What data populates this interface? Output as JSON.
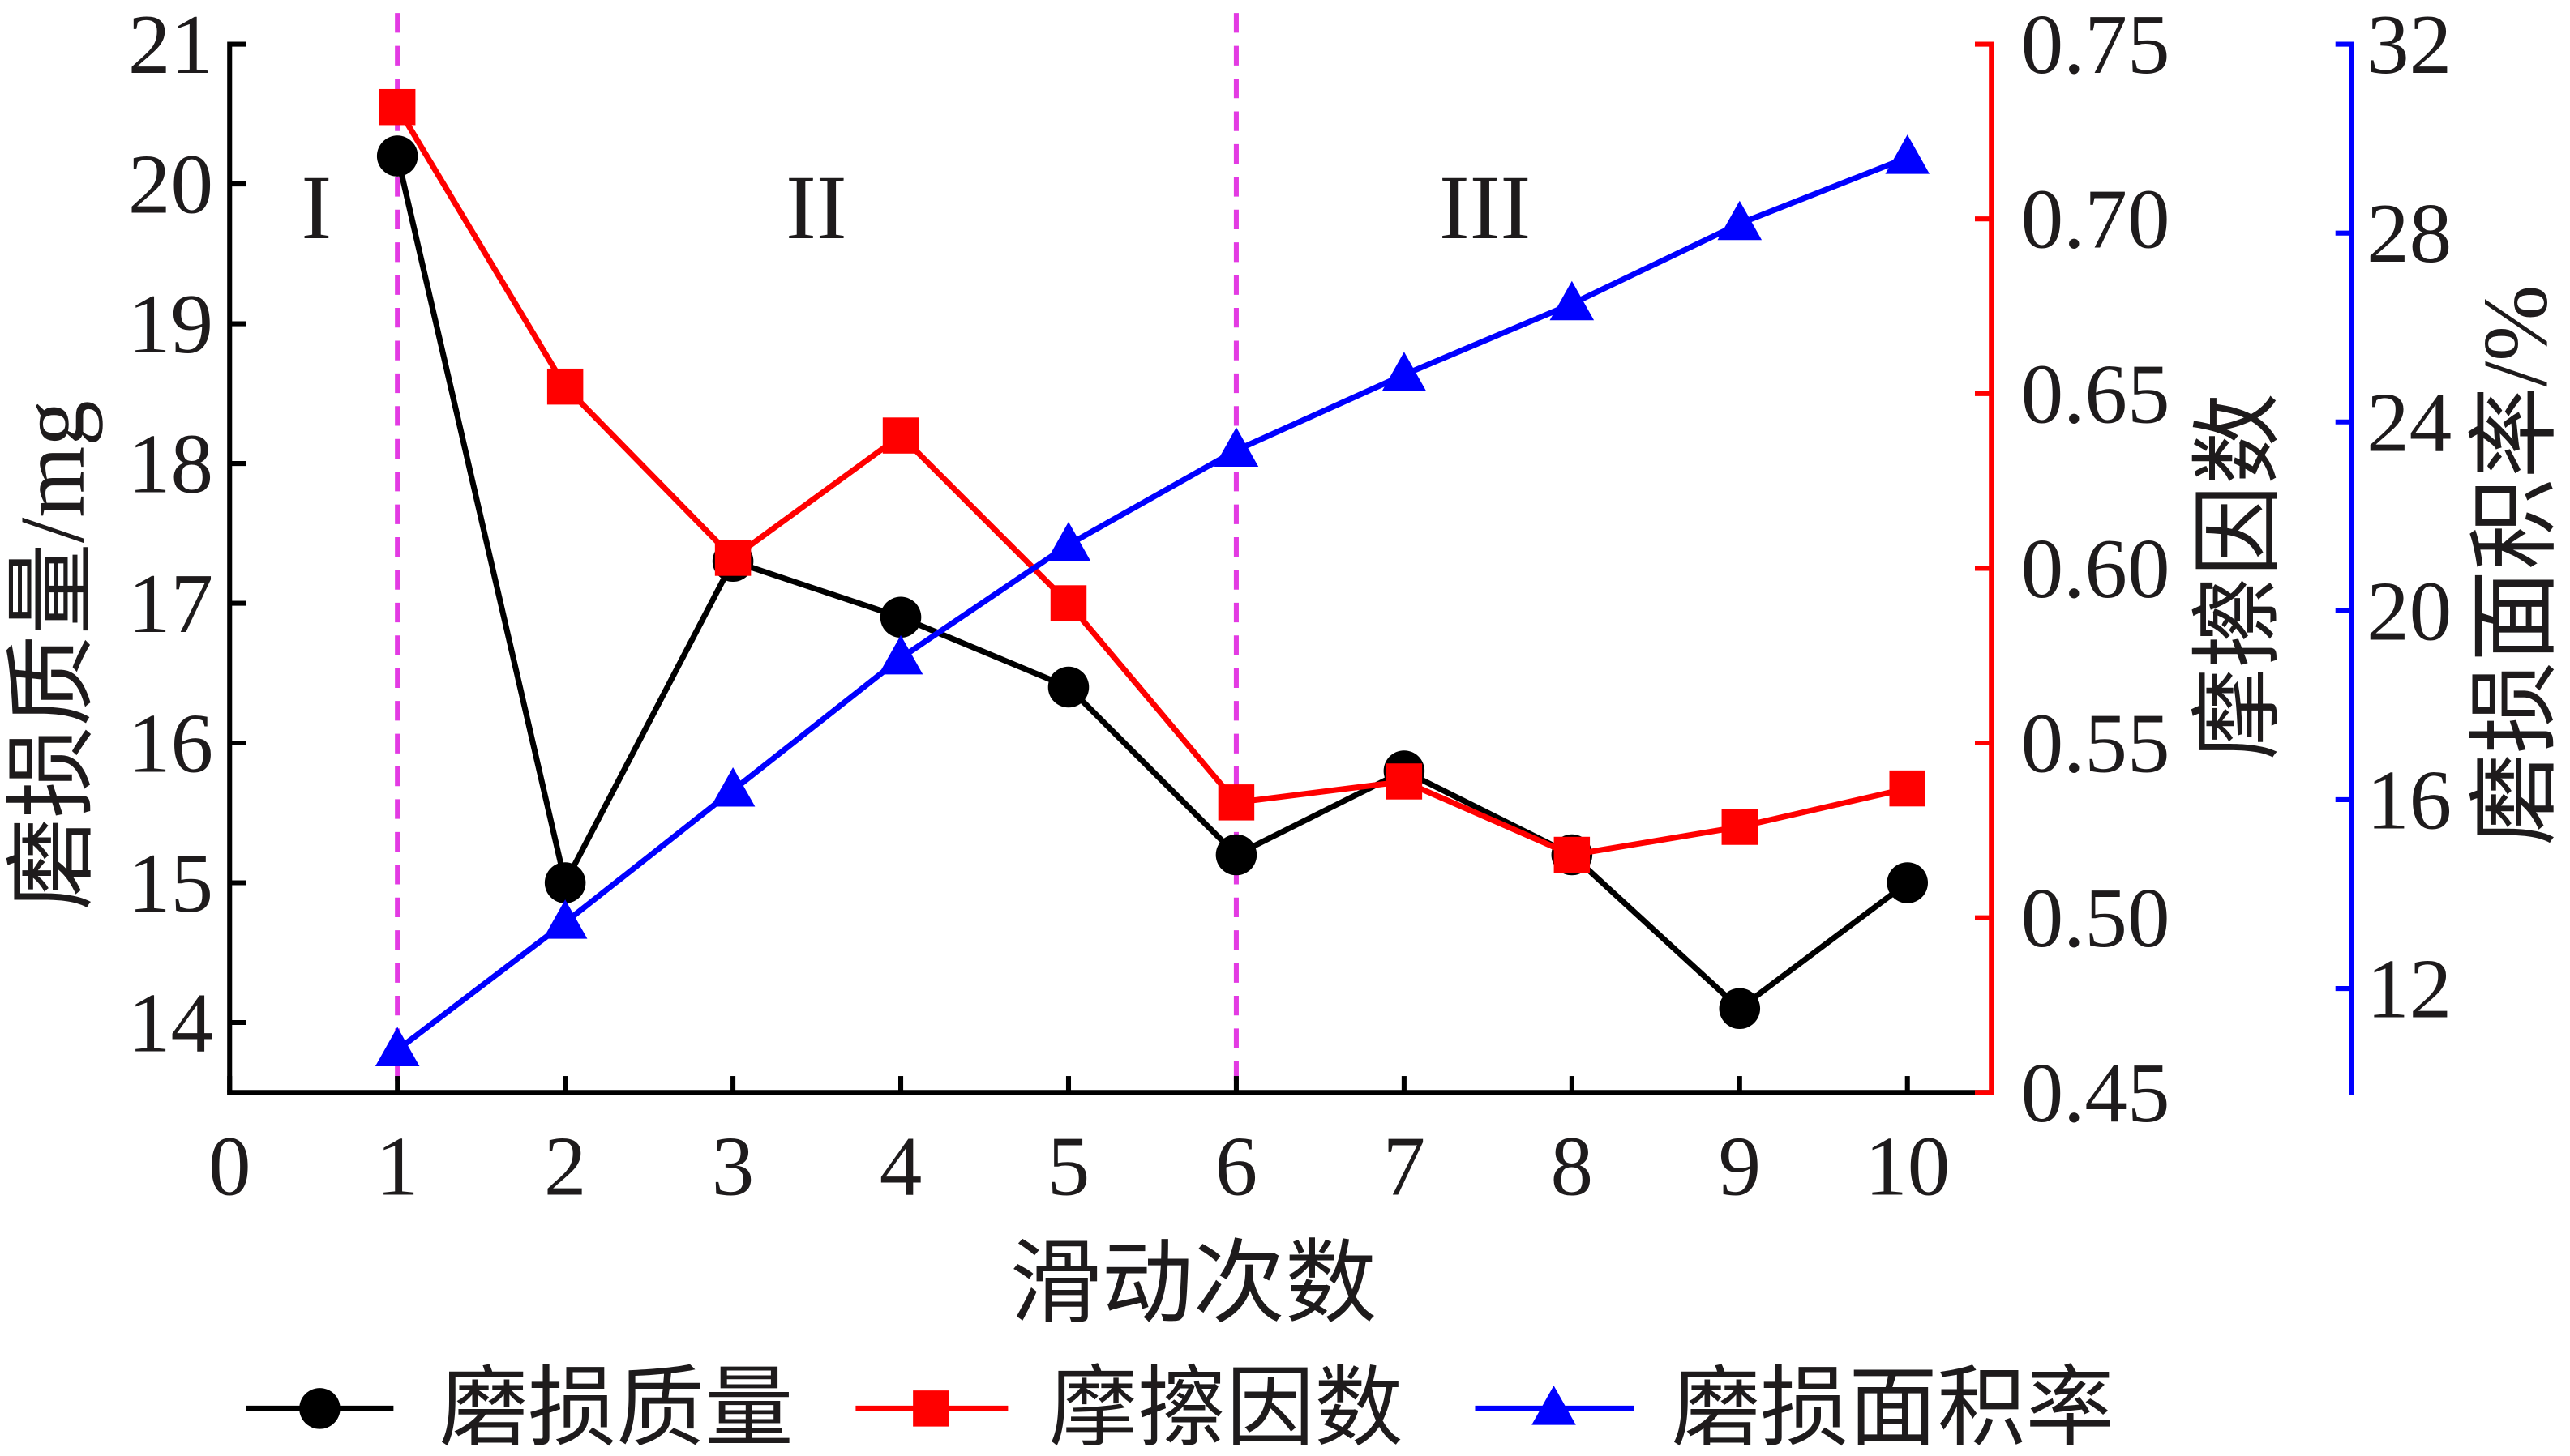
{
  "chart_data": {
    "type": "line",
    "x": [
      1,
      2,
      3,
      4,
      5,
      6,
      7,
      8,
      9,
      10
    ],
    "xlim": [
      0,
      10.5
    ],
    "xticks": [
      "0",
      "1",
      "2",
      "3",
      "4",
      "5",
      "6",
      "7",
      "8",
      "9",
      "10"
    ],
    "xlabel": "滑动次数",
    "y_axes": [
      {
        "label": "磨损质量/mg",
        "position": "left",
        "ylim": [
          13.5,
          21
        ],
        "ticks": [
          "14",
          "15",
          "16",
          "17",
          "18",
          "19",
          "20",
          "21"
        ],
        "color": "#000000"
      },
      {
        "label": "摩擦因数",
        "position": "right",
        "ylim": [
          0.45,
          0.75
        ],
        "ticks": [
          "0.45",
          "0.50",
          "0.55",
          "0.60",
          "0.65",
          "0.70",
          "0.75"
        ],
        "color": "#ff0000"
      },
      {
        "label": "磨损面积率/%",
        "position": "outer-right",
        "ylim": [
          9.8,
          32
        ],
        "ticks": [
          "12",
          "16",
          "20",
          "24",
          "28",
          "32"
        ],
        "color": "#0000ff"
      }
    ],
    "series": [
      {
        "name": "磨损质量",
        "y_axis": 0,
        "marker": "circle",
        "color": "#000000",
        "values": [
          20.2,
          15.0,
          17.3,
          16.9,
          16.4,
          15.2,
          15.8,
          15.2,
          14.1,
          15.0
        ]
      },
      {
        "name": "摩擦因数",
        "y_axis": 1,
        "marker": "square",
        "color": "#ff0000",
        "values": [
          0.732,
          0.652,
          0.603,
          0.638,
          0.59,
          0.533,
          0.539,
          0.518,
          0.526,
          0.537
        ]
      },
      {
        "name": "磨损面积率",
        "y_axis": 2,
        "marker": "triangle",
        "color": "#0000ff",
        "values": [
          10.7,
          13.4,
          16.2,
          19.0,
          21.4,
          23.4,
          25.0,
          26.5,
          28.2,
          29.6
        ]
      }
    ],
    "vlines": {
      "x": [
        1,
        6
      ],
      "color": "#e33be3"
    },
    "annotations": [
      "I",
      "II",
      "III"
    ],
    "legend": "bottom",
    "grid": false
  }
}
